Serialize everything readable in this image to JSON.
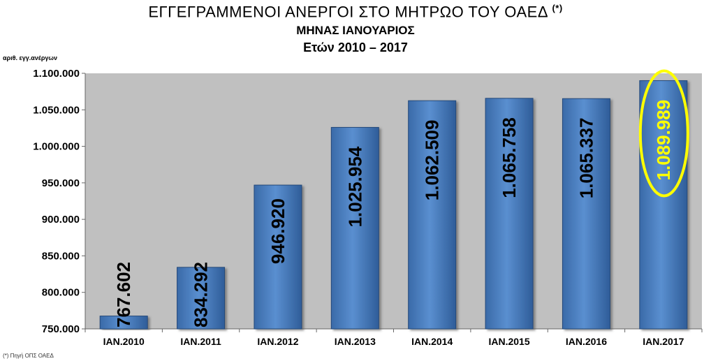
{
  "chart_data": {
    "type": "bar",
    "title": "ΕΓΓΕΓΡΑΜΜΕΝΟΙ ΑΝΕΡΓΟΙ ΣΤΟ ΜΗΤΡΩΟ ΤΟΥ ΟΑΕΔ",
    "title_marker": "(*)",
    "subtitle1": "ΜΗΝΑΣ ΙΑΝΟΥΑΡΙΟΣ",
    "subtitle2": "Ετών  2010 – 2017",
    "ylabel": "αριθ. εγγ.ανέργων",
    "footnote": "(*) Πηγή ΟΠΣ ΟΑΕΔ",
    "categories": [
      "ΙΑΝ.2010",
      "ΙΑΝ.2011",
      "ΙΑΝ.2012",
      "ΙΑΝ.2013",
      "ΙΑΝ.2014",
      "ΙΑΝ.2015",
      "ΙΑΝ.2016",
      "ΙΑΝ.2017"
    ],
    "values": [
      767602,
      834292,
      946920,
      1025954,
      1062509,
      1065758,
      1065337,
      1089989
    ],
    "data_labels": [
      "767.602",
      "834.292",
      "946.920",
      "1.025.954",
      "1.062.509",
      "1.065.758",
      "1.065.337",
      "1.089.989"
    ],
    "ylim": [
      750000,
      1100000
    ],
    "yticks": [
      750000,
      800000,
      850000,
      900000,
      950000,
      1000000,
      1050000,
      1100000
    ],
    "ytick_labels": [
      "750.000",
      "800.000",
      "850.000",
      "900.000",
      "950.000",
      "1.000.000",
      "1.050.000",
      "1.100.000"
    ],
    "highlight_index": 7,
    "bar_color": "#4a7ebf",
    "plot_background": "#c0c0c0",
    "highlight_color": "#ffff00",
    "grid": false,
    "legend": "none"
  }
}
